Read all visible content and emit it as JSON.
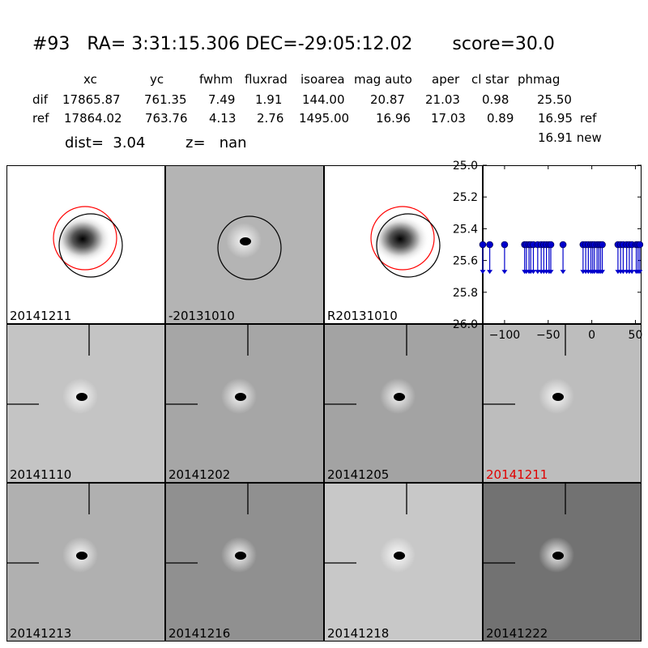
{
  "header": {
    "title": "#93   RA= 3:31:15.306 DEC=-29:05:12.02       score=30.0"
  },
  "table": {
    "columns": [
      "xc",
      "yc",
      "fwhm",
      "fluxrad",
      "isoarea",
      "mag auto",
      "aper",
      "cl star",
      "phmag"
    ],
    "rows": [
      {
        "label": "dif",
        "values": [
          "17865.87",
          "761.35",
          "7.49",
          "1.91",
          "144.00",
          "20.87",
          "21.03",
          "0.98",
          "25.50"
        ],
        "extra": ""
      },
      {
        "label": "ref",
        "values": [
          "17864.02",
          "763.76",
          "4.13",
          "2.76",
          "1495.00",
          "16.96",
          "17.03",
          "0.89",
          "16.95"
        ],
        "extra": "ref"
      }
    ],
    "new_mag": "16.91 new"
  },
  "info": {
    "dist": "dist=  3.04",
    "z": "z=   nan"
  },
  "panels": [
    {
      "label": "20141211",
      "color": "#000000",
      "bg": "#ffffff",
      "kind": "source"
    },
    {
      "label": "-20131010",
      "color": "#000000",
      "bg": "#b4b4b4",
      "kind": "diff-circle"
    },
    {
      "label": "R20131010",
      "color": "#000000",
      "bg": "#ffffff",
      "kind": "source"
    },
    {
      "label": "20141110",
      "color": "#000000",
      "bg": "#c4c4c4",
      "kind": "stamp"
    },
    {
      "label": "20141202",
      "color": "#000000",
      "bg": "#a6a6a6",
      "kind": "stamp"
    },
    {
      "label": "20141205",
      "color": "#000000",
      "bg": "#a3a3a3",
      "kind": "stamp"
    },
    {
      "label": "20141211",
      "color": "#e00000",
      "bg": "#bdbdbd",
      "kind": "stamp"
    },
    {
      "label": "20141213",
      "color": "#000000",
      "bg": "#b0b0b0",
      "kind": "stamp"
    },
    {
      "label": "20141216",
      "color": "#000000",
      "bg": "#909090",
      "kind": "stamp"
    },
    {
      "label": "20141218",
      "color": "#000000",
      "bg": "#c8c8c8",
      "kind": "stamp"
    },
    {
      "label": "20141222",
      "color": "#000000",
      "bg": "#727272",
      "kind": "stamp"
    }
  ],
  "chart_data": {
    "type": "scatter",
    "xlim": [
      -125,
      57
    ],
    "ylim": [
      26.0,
      25.0
    ],
    "x_ticks": [
      -100,
      -50,
      0,
      50
    ],
    "y_ticks": [
      "25.0",
      "25.2",
      "25.4",
      "25.6",
      "25.8",
      "26.0"
    ],
    "series": [
      {
        "marker": "circle-with-downward-arrow",
        "color": "#0000cc",
        "x": [
          -125,
          -117,
          -100,
          -77,
          -75,
          -72,
          -70,
          -67,
          -62,
          -58,
          -55,
          -52,
          -49,
          -47,
          -33,
          -10,
          -7,
          -4,
          -1,
          1,
          3,
          6,
          8,
          10,
          12,
          30,
          33,
          36,
          40,
          43,
          46,
          51,
          53,
          55
        ],
        "y": [
          25.5,
          25.5,
          25.5,
          25.5,
          25.5,
          25.5,
          25.5,
          25.5,
          25.5,
          25.5,
          25.5,
          25.5,
          25.5,
          25.5,
          25.5,
          25.5,
          25.5,
          25.5,
          25.5,
          25.5,
          25.5,
          25.5,
          25.5,
          25.5,
          25.5,
          25.5,
          25.5,
          25.5,
          25.5,
          25.5,
          25.5,
          25.5,
          25.5,
          25.5
        ],
        "arrow_to": 25.68
      }
    ]
  }
}
